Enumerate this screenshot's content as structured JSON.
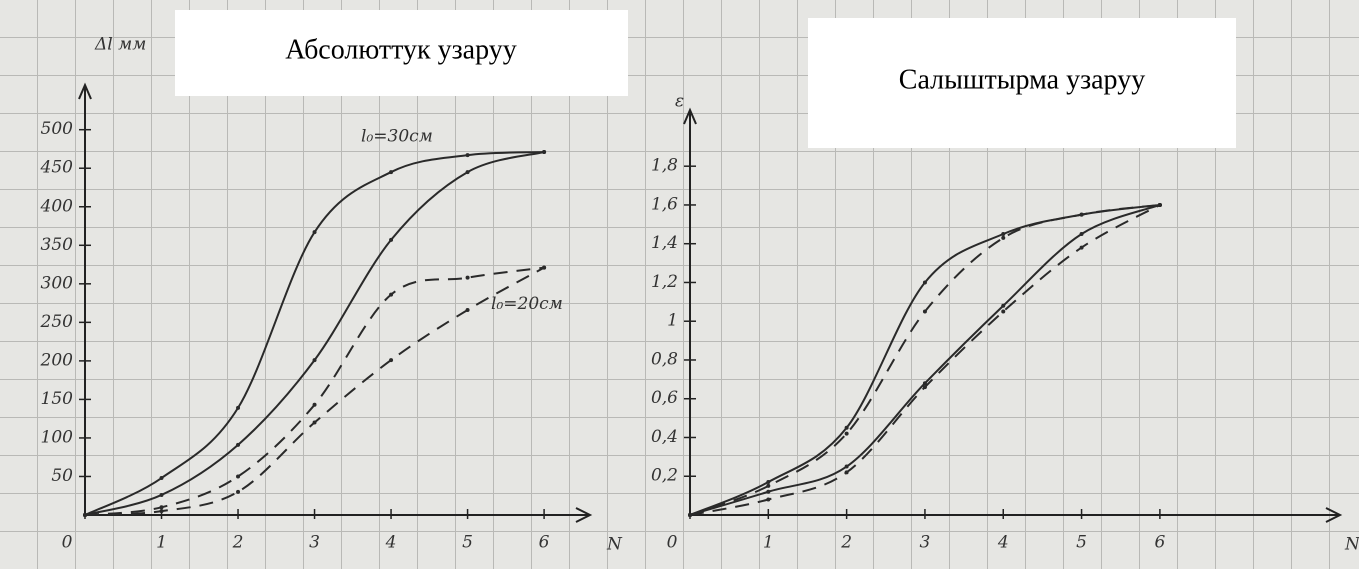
{
  "chart_data": [
    {
      "type": "line",
      "title": "Абсолюттук узаруу",
      "y_label": "Δl мм",
      "x_label": "N",
      "x": [
        0,
        1,
        2,
        3,
        4,
        5,
        6
      ],
      "xlim": [
        0,
        6.6
      ],
      "ylim": [
        0,
        558
      ],
      "xticks": [
        0,
        1,
        2,
        3,
        4,
        5,
        6
      ],
      "yticks": [
        50,
        100,
        150,
        200,
        250,
        300,
        350,
        400,
        450,
        500
      ],
      "series": [
        {
          "name": "l₀=30см",
          "color": "#2a2a2a",
          "dash": false,
          "values": [
            0,
            48,
            139,
            367,
            445,
            467,
            471
          ]
        },
        {
          "color": "#2a2a2a",
          "dash": false,
          "values": [
            0,
            26,
            91,
            201,
            357,
            445,
            471
          ]
        },
        {
          "name": "l₀=20см",
          "color": "#2a2a2a",
          "dash": true,
          "values": [
            0,
            10,
            50,
            143,
            286,
            308,
            321
          ]
        },
        {
          "color": "#2a2a2a",
          "dash": true,
          "values": [
            0,
            5,
            30,
            120,
            201,
            266,
            321
          ]
        }
      ]
    },
    {
      "type": "line",
      "title": "Салыштырма узаруу",
      "y_label": "ε",
      "x_label": "N",
      "x": [
        0,
        1,
        2,
        3,
        4,
        5,
        6
      ],
      "xlim": [
        0,
        8.3
      ],
      "ylim": [
        0,
        2.09
      ],
      "xticks": [
        0,
        1,
        2,
        3,
        4,
        5,
        6
      ],
      "yticks": [
        {
          "value": 0.2,
          "label": "0,2"
        },
        {
          "value": 0.4,
          "label": "0,4"
        },
        {
          "value": 0.6,
          "label": "0,6"
        },
        {
          "value": 0.8,
          "label": "0,8"
        },
        1,
        {
          "value": 1.2,
          "label": "1,2"
        },
        {
          "value": 1.4,
          "label": "1,4"
        },
        {
          "value": 1.6,
          "label": "1,6"
        },
        {
          "value": 1.8,
          "label": "1,8"
        }
      ],
      "series": [
        {
          "color": "#2a2a2a",
          "dash": false,
          "values": [
            0,
            0.17,
            0.45,
            1.2,
            1.45,
            1.55,
            1.6
          ]
        },
        {
          "color": "#2a2a2a",
          "dash": false,
          "values": [
            0,
            0.12,
            0.25,
            0.68,
            1.08,
            1.45,
            1.6
          ]
        },
        {
          "color": "#2a2a2a",
          "dash": true,
          "values": [
            0,
            0.15,
            0.42,
            1.05,
            1.43,
            1.55,
            1.6
          ]
        },
        {
          "color": "#2a2a2a",
          "dash": true,
          "values": [
            0,
            0.08,
            0.22,
            0.66,
            1.05,
            1.38,
            1.6
          ]
        }
      ]
    }
  ]
}
